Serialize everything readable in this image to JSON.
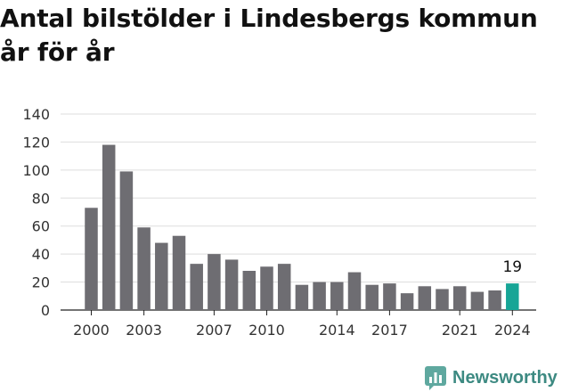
{
  "chart_data": {
    "type": "bar",
    "title": "Antal bilstölder i Lindesbergs kommun år för år",
    "xlabel": "",
    "ylabel": "",
    "categories": [
      "2000",
      "2001",
      "2002",
      "2003",
      "2004",
      "2005",
      "2006",
      "2007",
      "2008",
      "2009",
      "2010",
      "2011",
      "2012",
      "2013",
      "2014",
      "2015",
      "2016",
      "2017",
      "2018",
      "2019",
      "2020",
      "2021",
      "2022",
      "2023",
      "2024"
    ],
    "values": [
      73,
      118,
      99,
      59,
      48,
      53,
      33,
      40,
      36,
      28,
      31,
      33,
      18,
      20,
      20,
      27,
      18,
      19,
      12,
      17,
      15,
      17,
      13,
      14,
      19
    ],
    "x_tick_labels": [
      "2000",
      "2003",
      "2007",
      "2010",
      "2014",
      "2017",
      "2021",
      "2024"
    ],
    "y_ticks": [
      0,
      20,
      40,
      60,
      80,
      100,
      120,
      140
    ],
    "ylim": [
      0,
      140
    ],
    "grid": true,
    "highlight": {
      "category": "2024",
      "label": "19"
    },
    "colors": {
      "bar": "#6e6d72",
      "highlight": "#17a596",
      "grid": "#dddddd"
    }
  },
  "brand": {
    "name": "Newsworthy",
    "icon": "newsworthy-logo-icon",
    "color": "#3d8a82"
  }
}
